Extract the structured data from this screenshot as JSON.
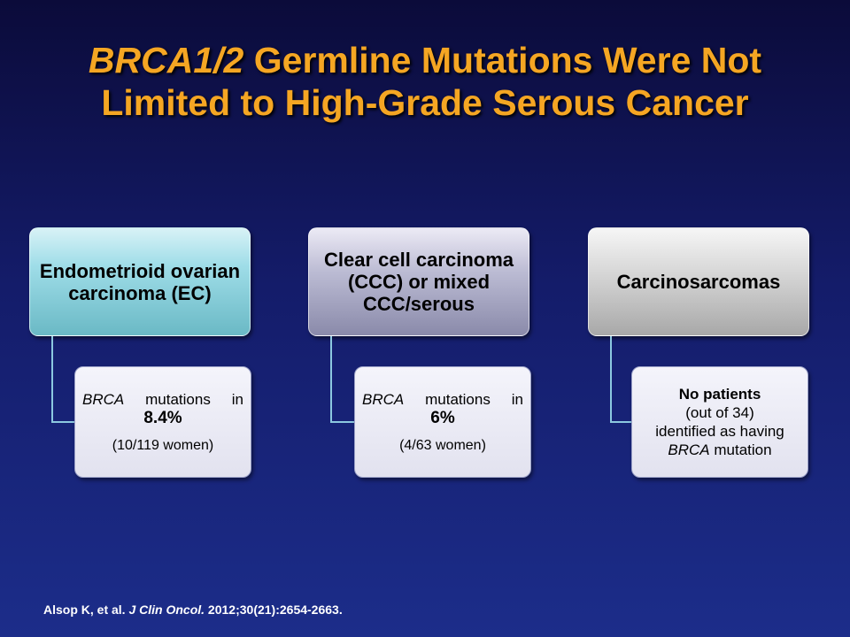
{
  "title": {
    "line1_italic": "BRCA1/2",
    "line1_rest": " Germline Mutations Were Not",
    "line2": "Limited to High-Grade Serous Cancer"
  },
  "columns": [
    {
      "header": "Endometrioid ovarian carcinoma (EC)",
      "sub": {
        "gene": "BRCA",
        "text": "mutations",
        "in": "in",
        "value": "8.4%",
        "detail": "(10/119 women)"
      }
    },
    {
      "header": "Clear cell carcinoma (CCC) or mixed CCC/serous",
      "sub": {
        "gene": "BRCA",
        "text": "mutations",
        "in": "in",
        "value": "6%",
        "detail": "(4/63 women)"
      }
    },
    {
      "header": "Carcinosarcomas",
      "sub": {
        "lead": "No patients",
        "line2": "(out of 34)",
        "line3": "identified as having",
        "gene": "BRCA",
        "line4_rest": " mutation"
      }
    }
  ],
  "citation": {
    "authors": "Alsop K, et al. ",
    "journal": "J Clin Oncol.",
    "ref": " 2012;30(21):2654-2663."
  }
}
